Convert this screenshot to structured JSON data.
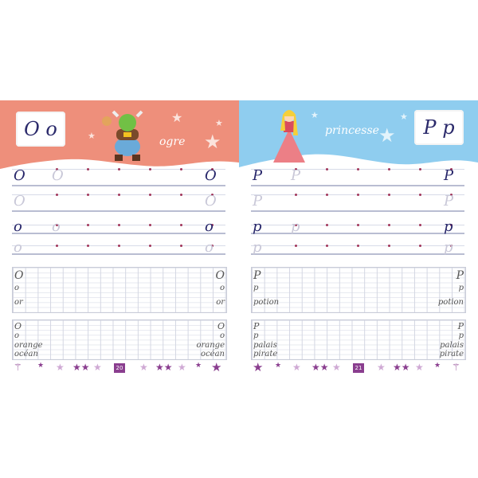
{
  "colors": {
    "left_banner": "#ee8f7b",
    "right_banner": "#8fcdef",
    "ink": "#27266a",
    "star_purple": "#8a3e8f",
    "star_light": "#cfa9d4"
  },
  "left": {
    "letters": "Oo",
    "upper": "O",
    "lower": "o",
    "word": "ogre",
    "character": "ogre illustration",
    "grid1": [
      "O",
      "o",
      "or"
    ],
    "grid2": [
      "O",
      "o",
      "orange",
      "océan"
    ],
    "page_number": "20"
  },
  "right": {
    "letters": "Pp",
    "upper": "P",
    "lower": "p",
    "word": "princesse",
    "character": "princess illustration",
    "grid1": [
      "P",
      "p",
      "potion"
    ],
    "grid2": [
      "P",
      "p",
      "palais",
      "pirate"
    ],
    "page_number": "21"
  }
}
